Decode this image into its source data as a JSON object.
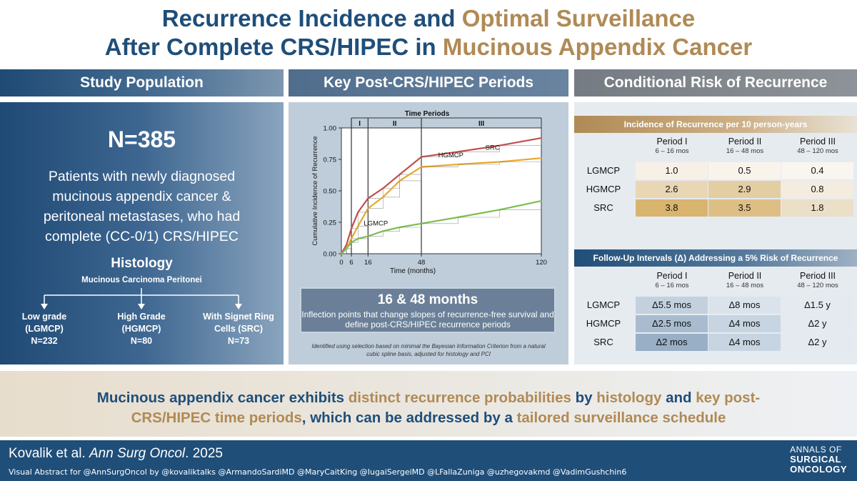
{
  "title": {
    "line1": [
      {
        "text": "Recurrence Incidence and ",
        "color": "#1f4e79"
      },
      {
        "text": "Optimal Surveillance",
        "color": "#b08a55"
      }
    ],
    "line2": [
      {
        "text": "After Complete CRS/HIPEC in ",
        "color": "#1f4e79"
      },
      {
        "text": "Mucinous Appendix Cancer",
        "color": "#b08a55"
      }
    ]
  },
  "columns": {
    "left": "Study Population",
    "middle": "Key Post-CRS/HIPEC Periods",
    "right": "Conditional Risk of Recurrence"
  },
  "population": {
    "n": "N=385",
    "description": "Patients with newly diagnosed mucinous appendix cancer & peritoneal metastases, who had complete (CC-0/1) CRS/HIPEC",
    "histology_title": "Histology",
    "histology_subtitle": "Mucinous Carcinoma Peritonei",
    "groups": [
      {
        "line1": "Low grade",
        "line2": "(LGMCP)",
        "count": "N=232"
      },
      {
        "line1": "High Grade",
        "line2": "(HGMCP)",
        "count": "N=80"
      },
      {
        "line1": "With Signet Ring",
        "line2": "Cells (SRC)",
        "count": "N=73"
      }
    ]
  },
  "chart_data": {
    "type": "line",
    "title": "Time Periods",
    "period_labels": [
      "I",
      "II",
      "III"
    ],
    "period_boundaries_months": [
      6,
      16,
      48
    ],
    "xlabel": "Time (months)",
    "ylabel": "Cumulative Incidence of Recurrence",
    "x_ticks": [
      0,
      6,
      16,
      48,
      120
    ],
    "y_ticks": [
      "0.00",
      "0.25",
      "0.50",
      "0.75",
      "1.00"
    ],
    "xlim": [
      0,
      120
    ],
    "ylim": [
      0,
      1
    ],
    "series": [
      {
        "name": "SRC",
        "color": "#c0504d",
        "x": [
          0,
          3,
          6,
          10,
          16,
          25,
          35,
          48,
          70,
          95,
          120
        ],
        "y": [
          0,
          0.07,
          0.2,
          0.33,
          0.44,
          0.52,
          0.63,
          0.77,
          0.81,
          0.86,
          0.92
        ]
      },
      {
        "name": "HGMCP",
        "color": "#e6a92e",
        "x": [
          0,
          3,
          6,
          10,
          16,
          25,
          35,
          48,
          70,
          95,
          120
        ],
        "y": [
          0,
          0.04,
          0.12,
          0.22,
          0.36,
          0.45,
          0.58,
          0.69,
          0.71,
          0.73,
          0.76
        ]
      },
      {
        "name": "LGMCP",
        "color": "#7cbf50",
        "x": [
          0,
          3,
          6,
          10,
          16,
          25,
          35,
          48,
          70,
          95,
          120
        ],
        "y": [
          0,
          0.04,
          0.09,
          0.12,
          0.14,
          0.18,
          0.21,
          0.24,
          0.29,
          0.35,
          0.42
        ]
      }
    ]
  },
  "inflection": {
    "title": "16 & 48 months",
    "description": "Inflection points that change slopes of recurrence-free survival and define post-CRS/HIPEC recurrence periods",
    "footnote": "Identified using selection based on minimal the Bayesian Information Criterion from a natural cubic spline basis, adjusted for histology and PCI"
  },
  "incidence_table": {
    "banner": "Incidence of Recurrence per 10 person-years",
    "columns": [
      {
        "name": "Period I",
        "range": "6 – 16 mos"
      },
      {
        "name": "Period II",
        "range": "16 – 48 mos"
      },
      {
        "name": "Period III",
        "range": "48 – 120 mos"
      }
    ],
    "rows": [
      {
        "label": "LGMCP",
        "values": [
          "1.0",
          "0.5",
          "0.4"
        ],
        "colors": [
          "#f6f0e6",
          "#f8f4ec",
          "#f9f5ef"
        ]
      },
      {
        "label": "HGMCP",
        "values": [
          "2.6",
          "2.9",
          "0.8"
        ],
        "colors": [
          "#e8d6b4",
          "#e3cda3",
          "#f4ecdf"
        ]
      },
      {
        "label": "SRC",
        "values": [
          "3.8",
          "3.5",
          "1.8"
        ],
        "colors": [
          "#d8b46f",
          "#ddbf86",
          "#ecdfc8"
        ]
      }
    ]
  },
  "followup_table": {
    "banner": "Follow-Up Intervals (Δ) Addressing a 5% Risk of Recurrence",
    "columns": [
      {
        "name": "Period I",
        "range": "6 – 16 mos"
      },
      {
        "name": "Period II",
        "range": "16 – 48 mos"
      },
      {
        "name": "Period III",
        "range": "48 – 120 mos"
      }
    ],
    "rows": [
      {
        "label": "LGMCP",
        "values": [
          "Δ5.5 mos",
          "Δ8 mos",
          "Δ1.5 y"
        ],
        "colors": [
          "#c3d1df",
          "#dae3ec",
          "#e4eaf0"
        ]
      },
      {
        "label": "HGMCP",
        "values": [
          "Δ2.5 mos",
          "Δ4 mos",
          "Δ2 y"
        ],
        "colors": [
          "#a9bccf",
          "#c7d4e1",
          "#e4eaf0"
        ]
      },
      {
        "label": "SRC",
        "values": [
          "Δ2 mos",
          "Δ4 mos",
          "Δ2 y"
        ],
        "colors": [
          "#98afc6",
          "#c7d4e1",
          "#e4eaf0"
        ]
      }
    ]
  },
  "conclusion": [
    {
      "text": "Mucinous appendix cancer exhibits ",
      "color": "#1f4e79"
    },
    {
      "text": "distinct recurrence probabilities",
      "color": "#b08a55"
    },
    {
      "text": " by ",
      "color": "#1f4e79"
    },
    {
      "text": "histology",
      "color": "#b08a55"
    },
    {
      "text": " and ",
      "color": "#1f4e79"
    },
    {
      "text": "key post-CRS/HIPEC time periods",
      "color": "#b08a55"
    },
    {
      "text": ", which can be addressed by a ",
      "color": "#1f4e79"
    },
    {
      "text": "tailored surveillance schedule",
      "color": "#b08a55"
    }
  ],
  "footer": {
    "authors": "Kovalik et al. ",
    "journal": "Ann Surg Oncol",
    "year": ". 2025",
    "credits": "Visual Abstract for @AnnSurgOncol by @kovaliktalks @ArmandoSardiMD @MaryCaitKing @IugaiSergeiMD @LFallaZuniga @uzhegovakmd @VadimGushchin6",
    "logo": [
      "ANNALS OF",
      "SURGICAL",
      "ONCOLOGY"
    ]
  }
}
